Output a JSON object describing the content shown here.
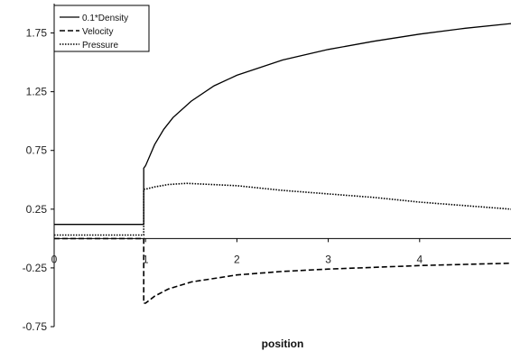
{
  "chart_data": {
    "type": "line",
    "title": "",
    "xlabel": "position",
    "ylabel": "",
    "xlim": [
      0,
      5
    ],
    "ylim": [
      -0.75,
      2.0
    ],
    "x_ticks": [
      0,
      1,
      2,
      3,
      4
    ],
    "x_tick_labels": [
      "0",
      "1",
      "2",
      "3",
      "4"
    ],
    "y_ticks": [
      -0.75,
      -0.25,
      0.25,
      0.75,
      1.25,
      1.75
    ],
    "y_tick_labels": [
      "-0.75",
      "-0.25",
      "0.25",
      "0.75",
      "1.25",
      "1.75"
    ],
    "grid": false,
    "legend_position": "top-left",
    "series": [
      {
        "name": "0.1*Density",
        "style": "solid",
        "color": "#000000",
        "points": [
          [
            0,
            0.12
          ],
          [
            0.98,
            0.12
          ],
          [
            0.98,
            0.6
          ],
          [
            1.0,
            0.62
          ],
          [
            1.1,
            0.8
          ],
          [
            1.2,
            0.93
          ],
          [
            1.3,
            1.03
          ],
          [
            1.5,
            1.17
          ],
          [
            1.75,
            1.3
          ],
          [
            2.0,
            1.39
          ],
          [
            2.5,
            1.52
          ],
          [
            3.0,
            1.61
          ],
          [
            3.5,
            1.68
          ],
          [
            4.0,
            1.74
          ],
          [
            4.5,
            1.79
          ],
          [
            5.0,
            1.83
          ]
        ]
      },
      {
        "name": "Velocity",
        "style": "dashed",
        "color": "#000000",
        "points": [
          [
            0,
            0.0
          ],
          [
            0.98,
            0.0
          ],
          [
            0.98,
            -0.55
          ],
          [
            1.0,
            -0.55
          ],
          [
            1.1,
            -0.49
          ],
          [
            1.25,
            -0.43
          ],
          [
            1.5,
            -0.37
          ],
          [
            2.0,
            -0.31
          ],
          [
            2.5,
            -0.28
          ],
          [
            3.0,
            -0.26
          ],
          [
            3.5,
            -0.245
          ],
          [
            4.0,
            -0.23
          ],
          [
            4.5,
            -0.22
          ],
          [
            5.0,
            -0.21
          ]
        ]
      },
      {
        "name": "Pressure",
        "style": "dotted",
        "color": "#000000",
        "points": [
          [
            0,
            0.03
          ],
          [
            0.98,
            0.03
          ],
          [
            0.98,
            0.42
          ],
          [
            1.0,
            0.42
          ],
          [
            1.1,
            0.44
          ],
          [
            1.25,
            0.46
          ],
          [
            1.45,
            0.47
          ],
          [
            2.0,
            0.45
          ],
          [
            2.5,
            0.41
          ],
          [
            3.0,
            0.38
          ],
          [
            3.5,
            0.35
          ],
          [
            4.0,
            0.31
          ],
          [
            4.5,
            0.28
          ],
          [
            5.0,
            0.25
          ]
        ]
      }
    ]
  }
}
